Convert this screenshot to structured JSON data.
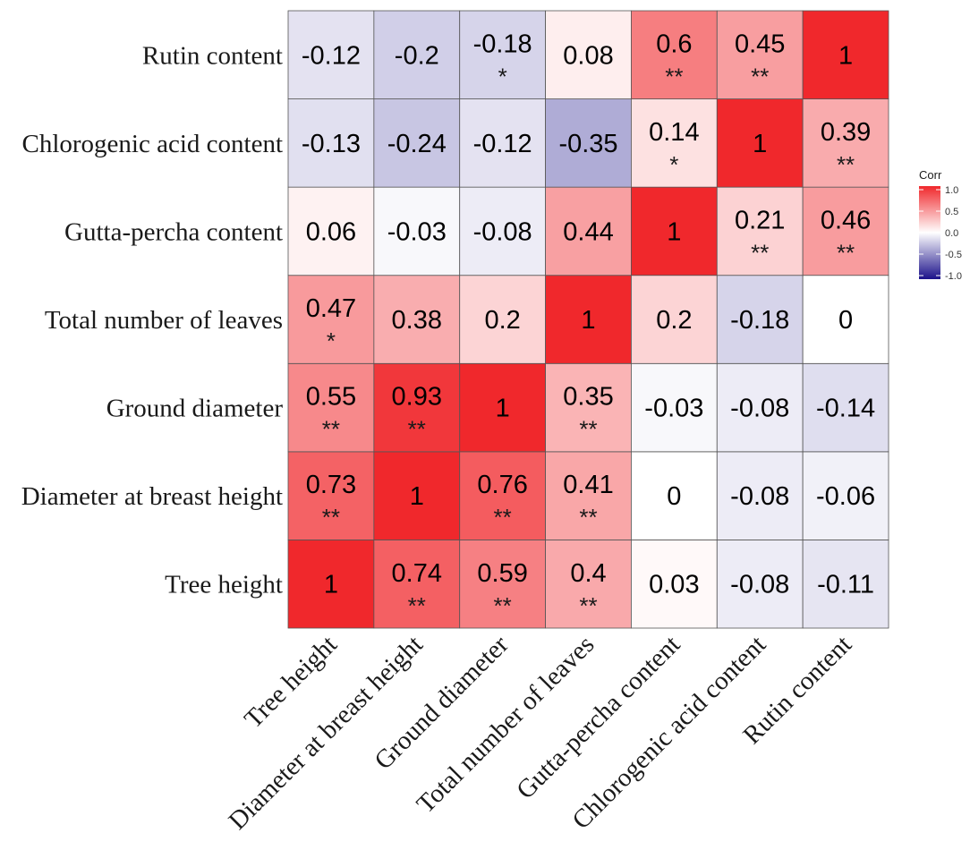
{
  "chart_data": {
    "type": "heatmap",
    "title": "",
    "xlabel": "",
    "ylabel": "",
    "variables": [
      "Tree height",
      "Diameter at breast height",
      "Ground diameter",
      "Total number of leaves",
      "Gutta-percha content",
      "Chlorogenic acid content",
      "Rutin content"
    ],
    "matrix": [
      [
        1,
        0.74,
        0.59,
        0.4,
        0.03,
        -0.08,
        -0.11
      ],
      [
        0.73,
        1,
        0.76,
        0.41,
        0,
        -0.08,
        -0.06
      ],
      [
        0.55,
        0.93,
        1,
        0.35,
        -0.03,
        -0.08,
        -0.14
      ],
      [
        0.47,
        0.38,
        0.2,
        1,
        0.2,
        -0.18,
        0
      ],
      [
        0.06,
        -0.03,
        -0.08,
        0.44,
        1,
        0.21,
        0.46
      ],
      [
        -0.13,
        -0.24,
        -0.12,
        -0.35,
        0.14,
        1,
        0.39
      ],
      [
        -0.12,
        -0.2,
        -0.18,
        0.08,
        0.6,
        0.45,
        1
      ]
    ],
    "significance": [
      [
        "",
        "**",
        "**",
        "**",
        "",
        "",
        ""
      ],
      [
        "**",
        "",
        "**",
        "**",
        "",
        "",
        ""
      ],
      [
        "**",
        "**",
        "",
        "**",
        "",
        "",
        ""
      ],
      [
        "*",
        "",
        "",
        "",
        "",
        "",
        ""
      ],
      [
        "",
        "",
        "",
        "",
        "",
        "**",
        "**"
      ],
      [
        "",
        "",
        "",
        "",
        "*",
        "",
        "**"
      ],
      [
        "",
        "",
        "*",
        "",
        "**",
        "**",
        ""
      ]
    ],
    "legend": {
      "title": "Corr",
      "range": [
        -1,
        1
      ],
      "ticks": [
        "1.0",
        "0.5",
        "0.0",
        "-0.5",
        "-1.0"
      ],
      "colors": {
        "low": "#1b118a",
        "mid": "#ffffff",
        "high": "#f0282c"
      },
      "position": "right"
    }
  }
}
